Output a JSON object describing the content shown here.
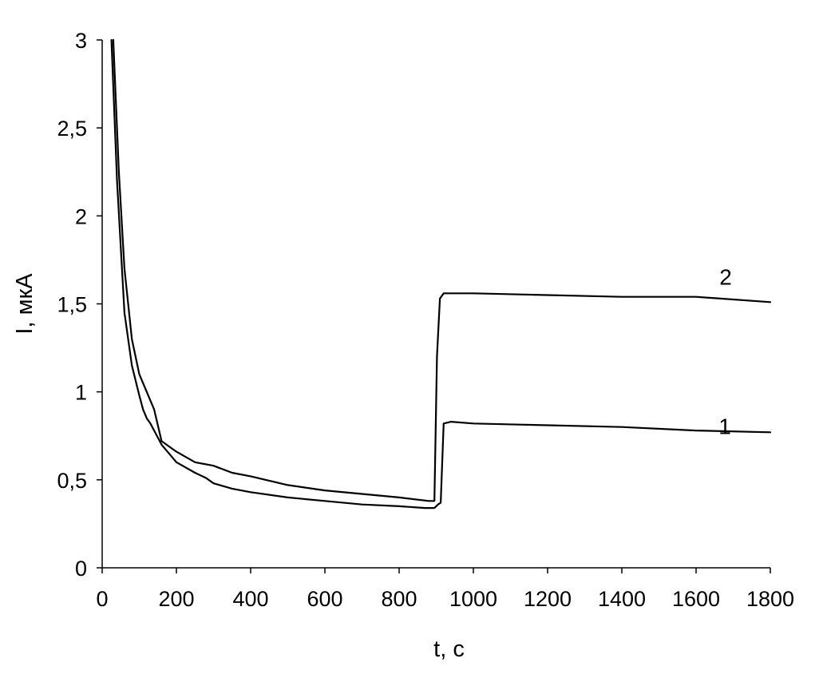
{
  "chart_data": {
    "type": "line",
    "xlabel": "t, с",
    "ylabel": "I, мкА",
    "xlim": [
      0,
      1800
    ],
    "ylim": [
      0,
      3
    ],
    "grid": false,
    "x_ticks": [
      "0",
      "200",
      "400",
      "600",
      "800",
      "1000",
      "1200",
      "1400",
      "1600",
      "1800"
    ],
    "y_ticks": [
      "0",
      "0,5",
      "1",
      "1,5",
      "2",
      "2,5",
      "3"
    ],
    "series": [
      {
        "name": "1",
        "x": [
          25,
          40,
          60,
          80,
          100,
          110,
          120,
          130,
          140,
          150,
          160,
          180,
          200,
          250,
          280,
          300,
          350,
          400,
          500,
          600,
          700,
          800,
          870,
          895,
          905,
          912,
          920,
          940,
          1000,
          1200,
          1400,
          1600,
          1800
        ],
        "y": [
          3.0,
          2.2,
          1.45,
          1.15,
          0.98,
          0.9,
          0.85,
          0.82,
          0.78,
          0.74,
          0.7,
          0.65,
          0.6,
          0.54,
          0.51,
          0.48,
          0.45,
          0.43,
          0.4,
          0.38,
          0.36,
          0.35,
          0.34,
          0.34,
          0.36,
          0.37,
          0.82,
          0.83,
          0.82,
          0.81,
          0.8,
          0.78,
          0.77
        ]
      },
      {
        "name": "2",
        "x": [
          30,
          45,
          60,
          80,
          100,
          120,
          140,
          160,
          200,
          250,
          300,
          350,
          400,
          500,
          600,
          700,
          800,
          880,
          895,
          902,
          910,
          920,
          1000,
          1200,
          1400,
          1600,
          1800
        ],
        "y": [
          3.0,
          2.25,
          1.7,
          1.3,
          1.1,
          1.0,
          0.9,
          0.72,
          0.66,
          0.6,
          0.58,
          0.54,
          0.52,
          0.47,
          0.44,
          0.42,
          0.4,
          0.38,
          0.38,
          1.2,
          1.53,
          1.56,
          1.56,
          1.55,
          1.54,
          1.54,
          1.51
        ]
      }
    ]
  }
}
